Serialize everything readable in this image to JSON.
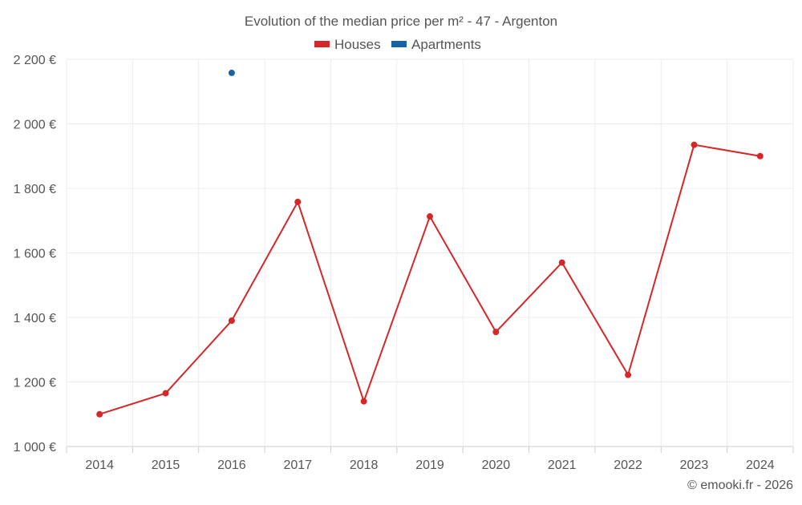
{
  "chart_data": {
    "type": "line",
    "title": "Evolution of the median price per m² - 47 - Argenton",
    "xlabel": "",
    "ylabel": "",
    "categories": [
      "2014",
      "2015",
      "2016",
      "2017",
      "2018",
      "2019",
      "2020",
      "2021",
      "2022",
      "2023",
      "2024"
    ],
    "ylim": [
      1000,
      2200
    ],
    "yticks": [
      1000,
      1200,
      1400,
      1600,
      1800,
      2000,
      2200
    ],
    "ytick_labels": [
      "1 000 €",
      "1 200 €",
      "1 400 €",
      "1 600 €",
      "1 800 €",
      "2 000 €",
      "2 200 €"
    ],
    "grid": true,
    "legend_position": "top-center",
    "series": [
      {
        "name": "Houses",
        "color": "#d62728",
        "values": [
          1100,
          1165,
          1390,
          1758,
          1140,
          1713,
          1355,
          1570,
          1222,
          1935,
          1900
        ]
      },
      {
        "name": "Apartments",
        "color": "#1565a6",
        "values": [
          null,
          null,
          2158,
          null,
          null,
          null,
          null,
          null,
          null,
          null,
          null
        ]
      }
    ],
    "credit": "© emooki.fr - 2026"
  }
}
